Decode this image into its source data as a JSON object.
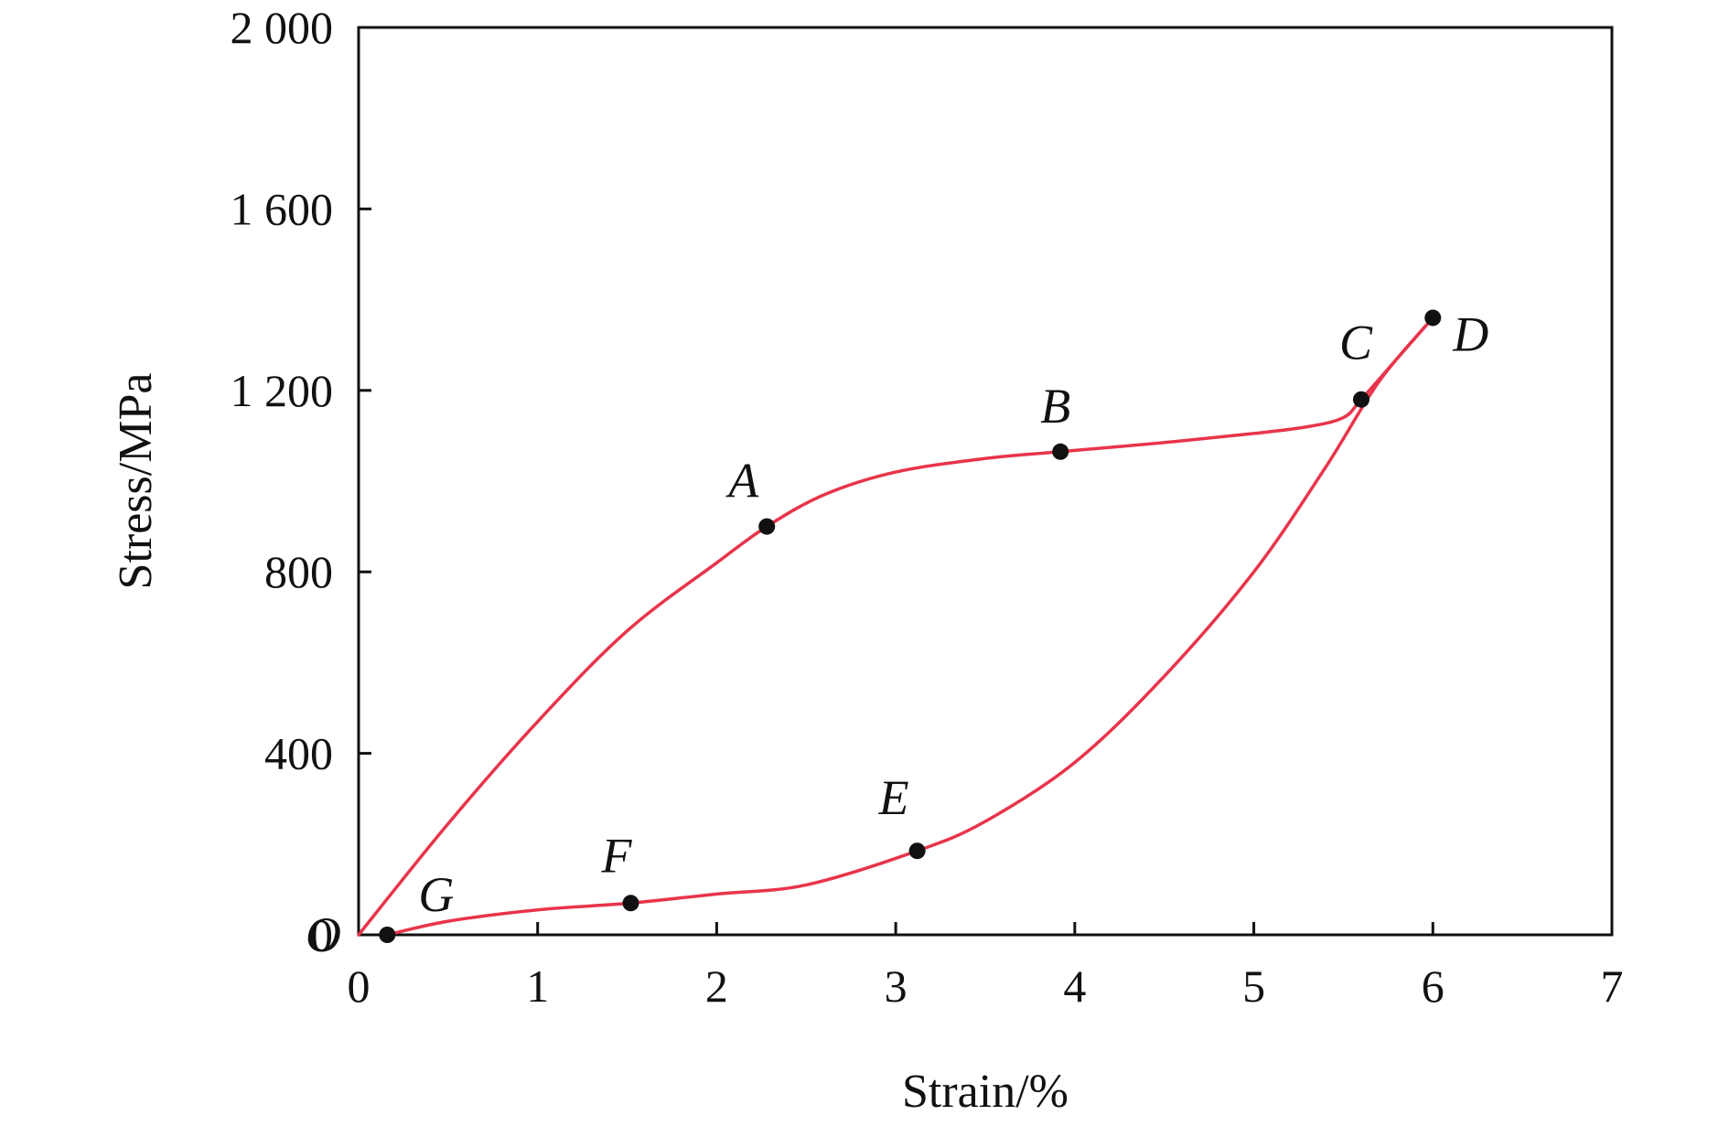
{
  "chart_data": {
    "type": "line",
    "title": "",
    "xlabel": "Strain/%",
    "ylabel": "Stress/MPa",
    "xlim": [
      0,
      7
    ],
    "ylim": [
      0,
      2000
    ],
    "xticks": [
      0,
      1,
      2,
      3,
      4,
      5,
      6,
      7
    ],
    "xtick_labels": [
      "0",
      "1",
      "2",
      "3",
      "4",
      "5",
      "6",
      "7"
    ],
    "yticks": [
      0,
      400,
      800,
      1200,
      1600,
      2000
    ],
    "ytick_labels": [
      "0",
      "400",
      "800",
      "1 200",
      "1 600",
      "2 000"
    ],
    "grid": false,
    "line_color": "#e8344a",
    "marker_color": "#111111",
    "series": [
      {
        "points": [
          [
            0.0,
            0
          ],
          [
            0.5,
            245
          ],
          [
            1.0,
            470
          ],
          [
            1.5,
            670
          ],
          [
            2.0,
            820
          ],
          [
            2.28,
            900
          ],
          [
            2.6,
            970
          ],
          [
            3.0,
            1020
          ],
          [
            3.5,
            1050
          ],
          [
            3.92,
            1065
          ],
          [
            4.5,
            1085
          ],
          [
            5.0,
            1105
          ],
          [
            5.3,
            1120
          ],
          [
            5.5,
            1140
          ],
          [
            5.6,
            1180
          ],
          [
            5.8,
            1270
          ],
          [
            6.0,
            1360
          ]
        ]
      },
      {
        "points": [
          [
            6.0,
            1360
          ],
          [
            5.7,
            1220
          ],
          [
            5.4,
            1030
          ],
          [
            5.0,
            800
          ],
          [
            4.5,
            570
          ],
          [
            4.0,
            380
          ],
          [
            3.5,
            250
          ],
          [
            3.12,
            185
          ],
          [
            2.5,
            110
          ],
          [
            2.0,
            90
          ],
          [
            1.52,
            70
          ],
          [
            1.0,
            55
          ],
          [
            0.5,
            30
          ],
          [
            0.16,
            0
          ]
        ]
      }
    ],
    "key_points": [
      {
        "label": "O",
        "x": 0.0,
        "y": 0
      },
      {
        "label": "A",
        "x": 2.28,
        "y": 900
      },
      {
        "label": "B",
        "x": 3.92,
        "y": 1065
      },
      {
        "label": "C",
        "x": 5.6,
        "y": 1180
      },
      {
        "label": "D",
        "x": 6.0,
        "y": 1360
      },
      {
        "label": "E",
        "x": 3.12,
        "y": 185
      },
      {
        "label": "F",
        "x": 1.52,
        "y": 70
      },
      {
        "label": "G",
        "x": 0.16,
        "y": 0
      }
    ]
  }
}
